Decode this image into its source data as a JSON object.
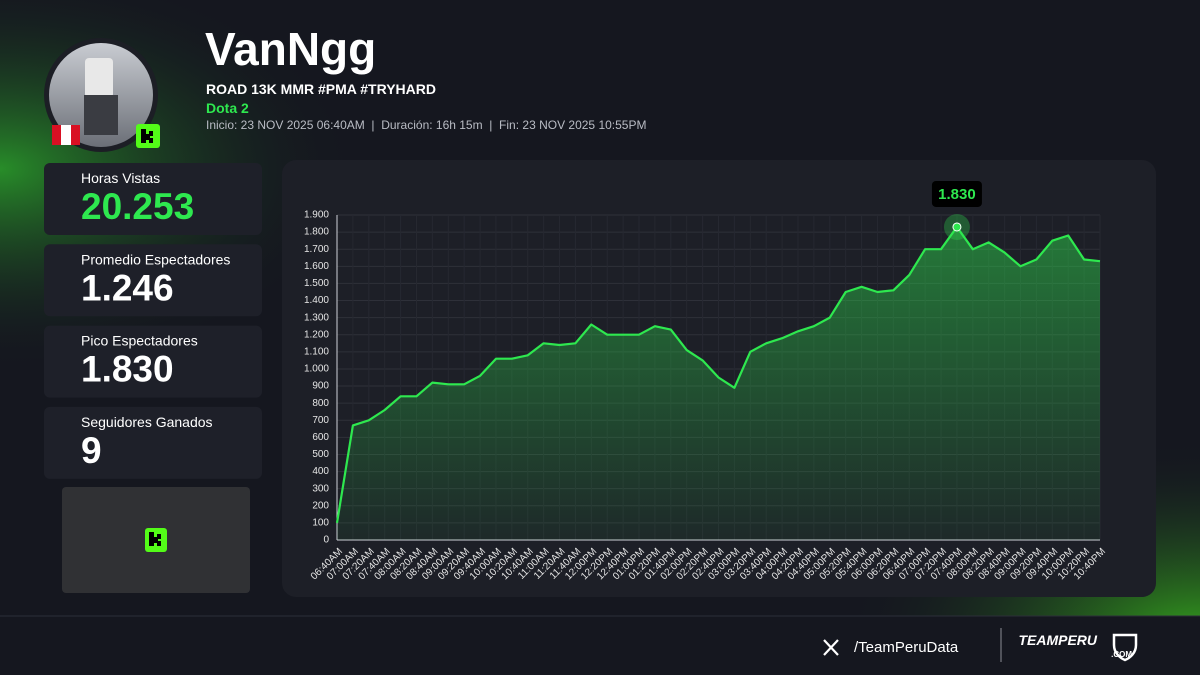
{
  "header": {
    "name": "VanNgg",
    "stream_title": "ROAD 13K MMR #PMA #TRYHARD",
    "game": "Dota 2",
    "details": "Inicio: 23 NOV 2025 06:40AM  |  Duración: 16h 15m  |  Fin: 23 NOV 2025 10:55PM"
  },
  "stats": [
    {
      "label": "Horas Vistas",
      "value": "20.253"
    },
    {
      "label": "Promedio Espectadores",
      "value": "1.246"
    },
    {
      "label": "Pico Espectadores",
      "value": "1.830"
    },
    {
      "label": "Seguidores Ganados",
      "value": "9"
    }
  ],
  "chart_data": {
    "type": "line",
    "color": "#2ee84f",
    "grid": true,
    "categories": [
      "06:40AM",
      "07:00AM",
      "07:20AM",
      "07:40AM",
      "08:00AM",
      "08:20AM",
      "08:40AM",
      "09:00AM",
      "09:20AM",
      "09:40AM",
      "10:00AM",
      "10:20AM",
      "10:40AM",
      "11:00AM",
      "11:20AM",
      "11:40AM",
      "12:00PM",
      "12:20PM",
      "12:40PM",
      "01:00PM",
      "01:20PM",
      "01:40PM",
      "02:00PM",
      "02:20PM",
      "02:40PM",
      "03:00PM",
      "03:20PM",
      "03:40PM",
      "04:00PM",
      "04:20PM",
      "04:40PM",
      "05:00PM",
      "05:20PM",
      "05:40PM",
      "06:00PM",
      "06:20PM",
      "06:40PM",
      "07:00PM",
      "07:20PM",
      "07:40PM",
      "08:00PM",
      "08:20PM",
      "08:40PM",
      "09:00PM",
      "09:20PM",
      "09:40PM",
      "10:00PM",
      "10:20PM",
      "10:40PM"
    ],
    "values": [
      100,
      670,
      700,
      760,
      840,
      840,
      920,
      910,
      910,
      960,
      1060,
      1060,
      1080,
      1150,
      1140,
      1150,
      1260,
      1200,
      1200,
      1200,
      1250,
      1230,
      1110,
      1050,
      950,
      890,
      1100,
      1150,
      1180,
      1220,
      1250,
      1300,
      1450,
      1480,
      1450,
      1460,
      1550,
      1700,
      1700,
      1830,
      1700,
      1740,
      1680,
      1600,
      1640,
      1750,
      1780,
      1640,
      1630
    ],
    "ylim": [
      0,
      1900
    ],
    "yticks": [
      0,
      100,
      200,
      300,
      400,
      500,
      600,
      700,
      800,
      900,
      {
        "value": 1000,
        "label": "1.000"
      },
      {
        "value": 1100,
        "label": "1.100"
      },
      {
        "value": 1200,
        "label": "1.200"
      },
      {
        "value": 1300,
        "label": "1.300"
      },
      {
        "value": 1400,
        "label": "1.400"
      },
      {
        "value": 1500,
        "label": "1.500"
      },
      {
        "value": 1600,
        "label": "1.600"
      },
      {
        "value": 1700,
        "label": "1.700"
      },
      {
        "value": 1800,
        "label": "1.800"
      },
      {
        "value": 1900,
        "label": "1.900"
      }
    ],
    "peak": {
      "value": 1830,
      "label": "1.830"
    }
  },
  "footer": {
    "social": "/TeamPeruData",
    "brand": "TEAMPERU",
    "brand_suffix": ".COM"
  }
}
